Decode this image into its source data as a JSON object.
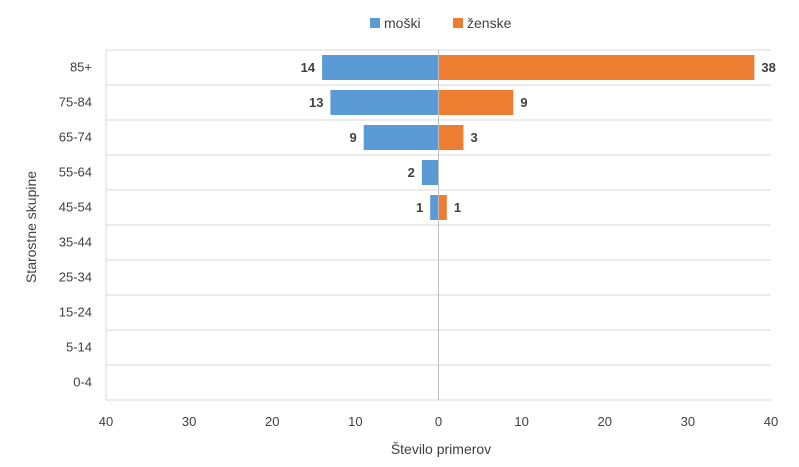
{
  "chart_data": {
    "type": "bar",
    "orientation": "horizontal",
    "layout": "population-pyramid",
    "categories": [
      "85+",
      "75-84",
      "65-74",
      "55-64",
      "45-54",
      "35-44",
      "25-34",
      "15-24",
      "5-14",
      "0-4"
    ],
    "series": [
      {
        "name": "moški",
        "values": [
          14,
          13,
          9,
          2,
          1,
          0,
          0,
          0,
          0,
          0
        ],
        "color": "#5b9bd5",
        "side": "left"
      },
      {
        "name": "ženske",
        "values": [
          38,
          9,
          3,
          0,
          1,
          0,
          0,
          0,
          0,
          0
        ],
        "color": "#ed7d31",
        "side": "right"
      }
    ],
    "xlabel": "Število primerov",
    "ylabel": "Starostne skupine",
    "xlim": [
      -40,
      40
    ],
    "x_ticks": [
      40,
      30,
      20,
      10,
      0,
      10,
      20,
      30,
      40
    ],
    "grid": "horizontal",
    "legend_position": "top"
  }
}
